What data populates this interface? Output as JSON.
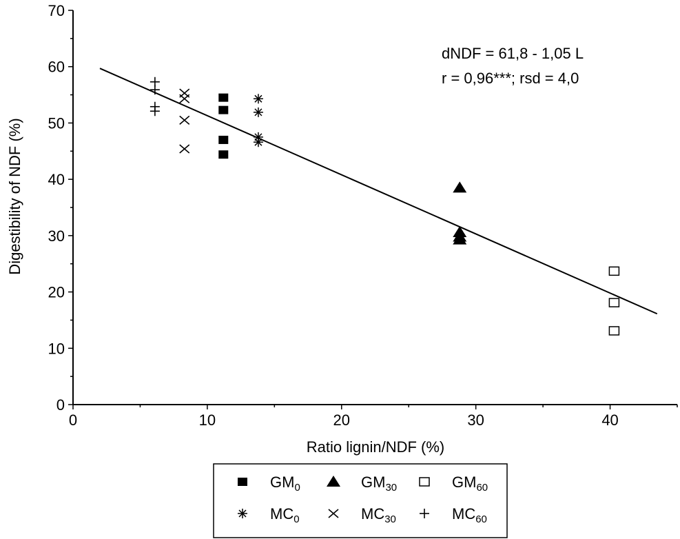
{
  "chart_data": {
    "type": "scatter",
    "title": "",
    "xlabel": "Ratio lignin/NDF (%)",
    "ylabel": "Digestibility of NDF (%)",
    "xlim": [
      0,
      45
    ],
    "ylim": [
      0,
      70
    ],
    "xticks": [
      0,
      10,
      20,
      30,
      40
    ],
    "yticks": [
      0,
      10,
      20,
      30,
      40,
      50,
      60,
      70
    ],
    "grid": false,
    "legend_position": "bottom",
    "annotations": [
      "dNDF = 61,8 - 1,05 L",
      "r = 0,96***; rsd = 4,0"
    ],
    "regression_line": {
      "intercept": 61.8,
      "slope": -1.05,
      "x_range": [
        2,
        43.5
      ]
    },
    "series": [
      {
        "name": "GM",
        "subscript": "0",
        "marker": "filled-square",
        "points": [
          [
            11.2,
            54.5
          ],
          [
            11.2,
            52.3
          ],
          [
            11.2,
            47.0
          ],
          [
            11.2,
            44.4
          ]
        ]
      },
      {
        "name": "GM",
        "subscript": "30",
        "marker": "filled-triangle",
        "points": [
          [
            28.8,
            38.5
          ],
          [
            28.8,
            30.6
          ],
          [
            28.8,
            29.8
          ],
          [
            28.8,
            29.3
          ]
        ]
      },
      {
        "name": "GM",
        "subscript": "60",
        "marker": "open-square",
        "points": [
          [
            40.3,
            23.7
          ],
          [
            40.3,
            18.1
          ],
          [
            40.3,
            13.1
          ]
        ]
      },
      {
        "name": "MC",
        "subscript": "0",
        "marker": "asterisk",
        "points": [
          [
            13.8,
            54.3
          ],
          [
            13.8,
            51.9
          ],
          [
            13.8,
            47.5
          ],
          [
            13.8,
            46.6
          ]
        ]
      },
      {
        "name": "MC",
        "subscript": "30",
        "marker": "x-cross",
        "points": [
          [
            8.3,
            55.3
          ],
          [
            8.3,
            54.3
          ],
          [
            8.3,
            50.5
          ],
          [
            8.3,
            45.4
          ]
        ]
      },
      {
        "name": "MC",
        "subscript": "60",
        "marker": "plus",
        "points": [
          [
            6.1,
            57.3
          ],
          [
            6.1,
            55.9
          ],
          [
            6.1,
            52.9
          ],
          [
            6.1,
            52.1
          ]
        ]
      }
    ]
  }
}
